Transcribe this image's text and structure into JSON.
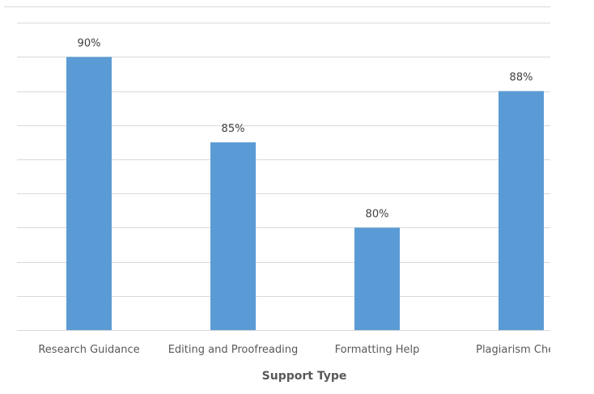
{
  "chart_data": {
    "type": "bar",
    "categories": [
      "Research Guidance",
      "Editing and Proofreading",
      "Formatting Help",
      "Plagiarism Check"
    ],
    "values": [
      90,
      85,
      80,
      88
    ],
    "data_labels": [
      "90%",
      "85%",
      "80%",
      "88%"
    ],
    "title": "",
    "xlabel": "Support Type",
    "ylabel": "",
    "ylim": [
      74,
      92
    ],
    "ytick_step": 2,
    "grid": true,
    "bar_color": "#5B9BD5",
    "grid_color": "#D9D9D9"
  }
}
